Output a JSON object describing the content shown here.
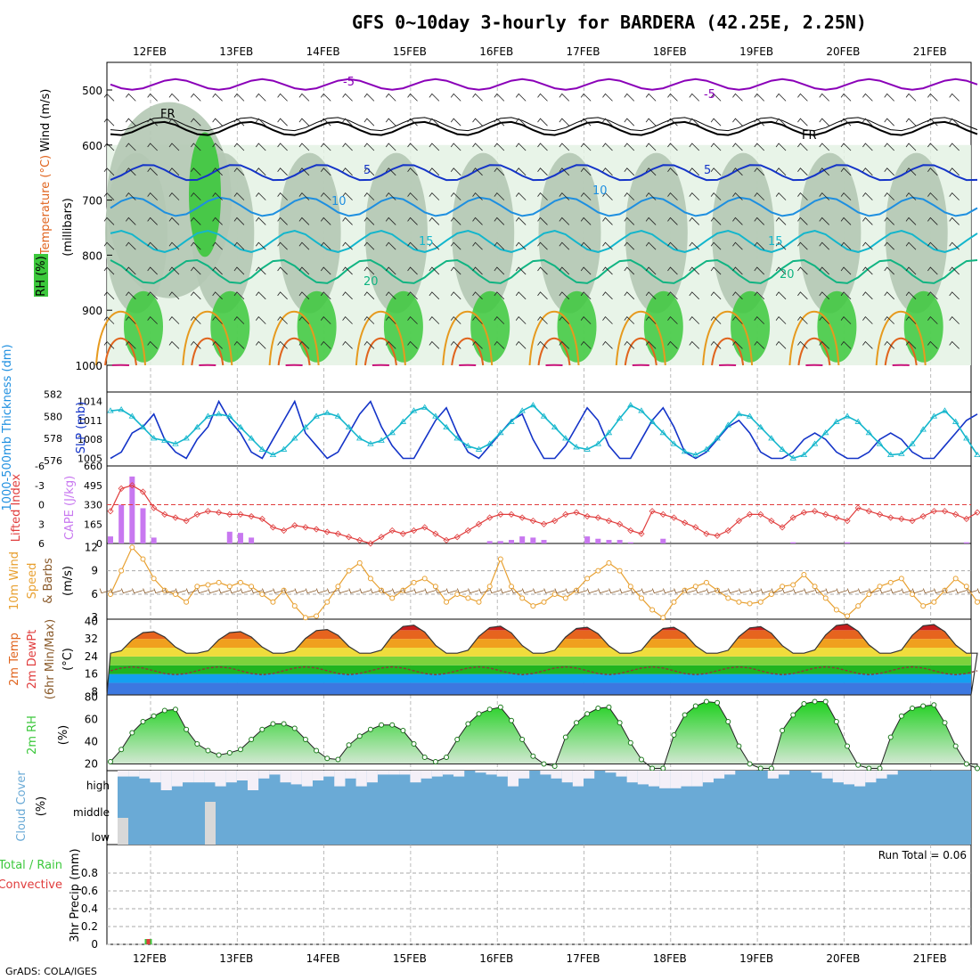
{
  "header": {
    "title": "GFS 0~10day 3-hourly for BARDERA (42.25E, 2.25N)",
    "credit": "GrADS: COLA/IGES",
    "run_total": "Run Total = 0.06"
  },
  "colors": {
    "purple": "#8a00b8",
    "black": "#000000",
    "blue_dark": "#1434c8",
    "blue_mid": "#1e8fe0",
    "cyan": "#13b6cc",
    "teal": "#10b482",
    "orange": "#e69a1e",
    "orange_dark": "#e0641e",
    "magenta": "#c8147a",
    "rh_green": "#3cc83c",
    "rh_light": "#e4f2e4",
    "rh_mid": "#b4c8b4",
    "cape": "#c878f0",
    "li_red": "#e03c3c",
    "wind_orange": "#e8a030",
    "barb_brown": "#8a5a2a",
    "cloud_blue": "#6aaad6",
    "precip_green": "#3cc83c",
    "precip_red": "#e03c3c"
  },
  "chart_data": [
    {
      "panel": "upper-air",
      "type": "contour",
      "title": "GFS 0~10day 3-hourly for BARDERA (42.25E, 2.25N)",
      "x_ticks": [
        "12FEB",
        "13FEB",
        "14FEB",
        "15FEB",
        "16FEB",
        "17FEB",
        "18FEB",
        "19FEB",
        "20FEB",
        "21FEB"
      ],
      "y_ticks": [
        "500",
        "600",
        "700",
        "800",
        "900",
        "1000"
      ],
      "ylabel": "(millibars)",
      "legend_labels": {
        "wind": "Wind (m/s)",
        "temp": "Temperature (°C)",
        "rh": "RH (%)"
      },
      "contour_labels": [
        "-5",
        "-5",
        "FR",
        "FR",
        "5",
        "5",
        "10",
        "10",
        "15",
        "15",
        "20",
        "20"
      ],
      "temperature_contours": [
        {
          "label": "-5",
          "color": "#8a00b8",
          "base_mb": 490
        },
        {
          "label": "FR",
          "color": "#000000",
          "base_mb": 570
        },
        {
          "label": "5",
          "color": "#1434c8",
          "base_mb": 650
        },
        {
          "label": "10",
          "color": "#1e8fe0",
          "base_mb": 712
        },
        {
          "label": "15",
          "color": "#13b6cc",
          "base_mb": 775
        },
        {
          "label": "20",
          "color": "#10b482",
          "base_mb": 830
        }
      ]
    },
    {
      "panel": "thickness-slp",
      "type": "line",
      "y_ticks_left": [
        "582",
        "580",
        "578",
        "576"
      ],
      "y_ticks_right": [
        "1014",
        "1011",
        "1008",
        "1005"
      ],
      "ylabel_left": "1000-500mb Thickness (dm)",
      "ylabel_right": "SLP (mb)",
      "ylim_left": [
        575.5,
        582.2
      ],
      "ylim_right": [
        1003.8,
        1015.5
      ],
      "series": [
        {
          "name": "SLP",
          "color": "#1434c8",
          "values": [
            1005,
            1006,
            1009,
            1010,
            1012,
            1008,
            1006,
            1005,
            1008,
            1010,
            1014,
            1011,
            1009,
            1006,
            1005,
            1008,
            1011,
            1014,
            1009,
            1007,
            1005,
            1006,
            1009,
            1012,
            1014,
            1010,
            1007,
            1005,
            1005,
            1008,
            1011,
            1013,
            1009,
            1006,
            1005,
            1007,
            1009,
            1011,
            1012,
            1008,
            1005,
            1005,
            1007,
            1010,
            1013,
            1011,
            1007,
            1005,
            1005,
            1008,
            1011,
            1013,
            1010,
            1006,
            1005,
            1006,
            1008,
            1010,
            1011,
            1009,
            1006,
            1005,
            1005,
            1006,
            1008,
            1009,
            1008,
            1006,
            1005,
            1005,
            1006,
            1008,
            1009,
            1008,
            1006,
            1005,
            1005,
            1007,
            1009,
            1011,
            1012
          ]
        },
        {
          "name": "Thickness",
          "color": "#13b6cc",
          "values": [
            580.5,
            580.6,
            580,
            579,
            578,
            577.8,
            577.5,
            578,
            579,
            580,
            580.2,
            580,
            579,
            578,
            577,
            576.5,
            577,
            578,
            579,
            580,
            580.3,
            580,
            579,
            578,
            577.5,
            577.8,
            578.5,
            579.5,
            580.5,
            580.8,
            580,
            579,
            578,
            577.3,
            577,
            577.5,
            578.5,
            579.5,
            580.5,
            581,
            580,
            579,
            578,
            577.2,
            577,
            577.5,
            578.5,
            579.8,
            581,
            580.5,
            579.5,
            578.5,
            577.5,
            576.8,
            576.5,
            577,
            578,
            579.2,
            580.2,
            580,
            579,
            578,
            577,
            576.2,
            576.5,
            577.5,
            578.5,
            579.5,
            580,
            579.5,
            578.5,
            577.5,
            576.5,
            576.6,
            577.5,
            578.8,
            580,
            580.5,
            579.5,
            578,
            576.5
          ]
        }
      ]
    },
    {
      "panel": "li-cape",
      "type": "bar",
      "y_ticks_left": [
        "-6",
        "-3",
        "0",
        "3",
        "6"
      ],
      "y_ticks_right": [
        "660",
        "495",
        "330",
        "165",
        "0"
      ],
      "ylabel_left": "Lifted Index",
      "ylabel_right": "CAPE (J/kg)",
      "ylim_li": [
        6,
        -6
      ],
      "ylim_cape": [
        0,
        660
      ],
      "cape_values": [
        60,
        330,
        570,
        300,
        50,
        0,
        0,
        0,
        0,
        0,
        0,
        100,
        90,
        50,
        0,
        0,
        0,
        0,
        0,
        0,
        0,
        0,
        0,
        0,
        0,
        0,
        0,
        0,
        0,
        0,
        0,
        0,
        0,
        0,
        0,
        20,
        20,
        30,
        60,
        50,
        30,
        0,
        0,
        0,
        60,
        40,
        30,
        30,
        10,
        0,
        0,
        40,
        0,
        0,
        0,
        0,
        0,
        0,
        0,
        0,
        0,
        0,
        0,
        10,
        0,
        0,
        0,
        0,
        10,
        0,
        0,
        0,
        0,
        0,
        0,
        0,
        0,
        0,
        0,
        10,
        0
      ],
      "li_values": [
        1,
        -2.5,
        -3,
        -2,
        0.5,
        1.5,
        2,
        2.5,
        1.5,
        1,
        1.2,
        1.5,
        1.5,
        1.8,
        2.2,
        3.5,
        4,
        3.2,
        3.5,
        3.8,
        4.2,
        4.5,
        5,
        5.5,
        6,
        5,
        4,
        4.5,
        4,
        3.5,
        4.5,
        5.5,
        5,
        4,
        3,
        2,
        1.5,
        1.5,
        2,
        2.5,
        3,
        2.5,
        1.5,
        1.2,
        1.8,
        2,
        2.5,
        3,
        4,
        4.5,
        1,
        1.5,
        2,
        2.8,
        3.5,
        4.5,
        4.8,
        4,
        2.5,
        1.5,
        1.5,
        2.5,
        3.5,
        2,
        1.2,
        1,
        1.5,
        2,
        2.5,
        0.5,
        1,
        1.5,
        2,
        2.2,
        2.5,
        1.8,
        1,
        1,
        1.5,
        2.2,
        1.2
      ]
    },
    {
      "panel": "wind10m",
      "type": "line",
      "y_ticks": [
        "12",
        "9",
        "6",
        "3"
      ],
      "ylabel": "10m Wind Speed & Barbs (m/s)",
      "ylim": [
        2.8,
        12.5
      ],
      "series": [
        {
          "name": "wind speed",
          "color": "#e8a030",
          "values": [
            6,
            9,
            12,
            10.5,
            8,
            6.5,
            6,
            5,
            7,
            7.2,
            7.5,
            7,
            7.5,
            7,
            6,
            5,
            6.5,
            4.5,
            3,
            3.2,
            5,
            7,
            9,
            10,
            8,
            6.5,
            5.5,
            6.5,
            7.5,
            8,
            7,
            5,
            6,
            5.5,
            5,
            7,
            10.5,
            7,
            5.5,
            4.5,
            5,
            6,
            5.5,
            6.5,
            8,
            9,
            10,
            9,
            7,
            5.5,
            4,
            3,
            5,
            6.5,
            7,
            7.5,
            6.5,
            5.5,
            5,
            4.8,
            5,
            6,
            7,
            7.2,
            8.5,
            7,
            5.5,
            4,
            3.2,
            4.5,
            6,
            7,
            7.5,
            8,
            6,
            4.5,
            5,
            6.5,
            8,
            7,
            5,
            6,
            5.5,
            6
          ]
        }
      ]
    },
    {
      "panel": "temp2m",
      "type": "area",
      "y_ticks": [
        "40",
        "32",
        "24",
        "16",
        "8"
      ],
      "ylabel": "2m Temp 2m DewPt (6hr Min/Max) (°C)",
      "ylim": [
        6.5,
        41
      ],
      "temp_min": 25.5,
      "temp_max": [
        35.5,
        35.5,
        36.5,
        38.5,
        38,
        37.5,
        37.5,
        37.8,
        39,
        38.8
      ],
      "dewpt": 17.5
    },
    {
      "panel": "rh2m",
      "type": "area",
      "y_ticks": [
        "80",
        "60",
        "40",
        "20"
      ],
      "ylabel": "2m RH (%)",
      "ylim": [
        14,
        82
      ],
      "values": [
        22,
        33,
        48,
        58,
        63,
        68,
        69,
        51,
        38,
        32,
        28,
        30,
        33,
        42,
        51,
        56,
        56,
        52,
        42,
        32,
        25,
        24,
        37,
        45,
        51,
        55,
        55,
        50,
        38,
        26,
        22,
        26,
        42,
        56,
        65,
        69,
        71,
        59,
        42,
        27,
        20,
        18,
        44,
        57,
        65,
        70,
        71,
        57,
        39,
        24,
        16,
        16,
        46,
        64,
        72,
        76,
        75,
        58,
        36,
        20,
        16,
        16,
        50,
        64,
        74,
        76,
        76,
        58,
        36,
        19,
        16,
        16,
        44,
        63,
        70,
        72,
        73,
        57,
        36,
        20,
        16,
        22,
        47,
        64,
        73,
        76,
        55
      ]
    },
    {
      "panel": "cloud",
      "type": "bar",
      "y_ticks": [
        "high",
        "middle",
        "low"
      ],
      "ylabel": "Cloud Cover (%)",
      "high": [
        70,
        70,
        60,
        40,
        0,
        20,
        40,
        40,
        40,
        20,
        40,
        50,
        0,
        60,
        80,
        40,
        30,
        20,
        50,
        70,
        20,
        60,
        20,
        40,
        80,
        80,
        80,
        40,
        60,
        70,
        80,
        70,
        100,
        90,
        80,
        70,
        20,
        60,
        100,
        80,
        60,
        40,
        20,
        60,
        100,
        90,
        70,
        40,
        30,
        20,
        10,
        10,
        20,
        20,
        40,
        60,
        80,
        100,
        100,
        100,
        60,
        80,
        100,
        100,
        90,
        60,
        40,
        30,
        20,
        40,
        60,
        80,
        100,
        100,
        100,
        100,
        100,
        100,
        100,
        100,
        100
      ],
      "mid_low": [
        80,
        60,
        100,
        100,
        100,
        100,
        100,
        50,
        50,
        100,
        100,
        100,
        100,
        100,
        100,
        100,
        100,
        100,
        100,
        100,
        100,
        100,
        100,
        100,
        100,
        100,
        100,
        100,
        100,
        100,
        100,
        100,
        100,
        100,
        100,
        100,
        100,
        100,
        100,
        100,
        100,
        100,
        100,
        100,
        100,
        100,
        100,
        100,
        100,
        100,
        100,
        100,
        100,
        100,
        100,
        100,
        100,
        100,
        100,
        100,
        100,
        100,
        100,
        100,
        100,
        100,
        100,
        100,
        100,
        100,
        100,
        100,
        100,
        100,
        100,
        100,
        100,
        100,
        100,
        100,
        100
      ]
    },
    {
      "panel": "precip",
      "type": "bar",
      "y_ticks": [
        "0.8",
        "0.6",
        "0.4",
        "0.2",
        "0"
      ],
      "ylabel": "3hr Precip (mm)",
      "ylabel_total": "Total / Rain",
      "ylabel_conv": "Convective",
      "ylim": [
        0,
        1.0
      ],
      "total": [
        0,
        0,
        0,
        0.06,
        0
      ],
      "convective": [
        0,
        0,
        0,
        0.06,
        0
      ]
    }
  ]
}
